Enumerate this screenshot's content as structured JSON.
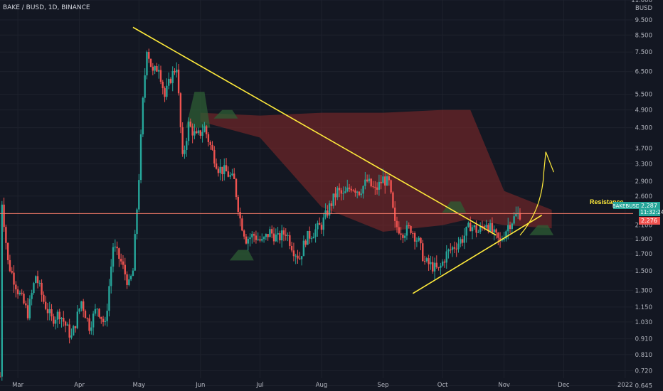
{
  "header": {
    "symbol_line": "BAKE / BUSD, 1D, BINANCE"
  },
  "price_axis": {
    "unit": "BUSD",
    "ticks": [
      "11.000",
      "9.500",
      "8.500",
      "7.500",
      "6.500",
      "5.500",
      "4.900",
      "4.300",
      "3.700",
      "3.300",
      "2.900",
      "2.600",
      "2.100",
      "1.900",
      "1.700",
      "1.500",
      "1.300",
      "1.150",
      "1.030",
      "0.910",
      "0.810",
      "0.720",
      "0.645"
    ]
  },
  "time_axis": {
    "ticks": [
      "Mar",
      "Apr",
      "May",
      "Jun",
      "Jul",
      "Aug",
      "Sep",
      "Oct",
      "Nov",
      "Dec",
      "2022"
    ]
  },
  "badges": {
    "symbol": "BAKEBUSD",
    "price": "2.287",
    "countdown": "11:32:24",
    "price2": "2.276"
  },
  "annotations": {
    "resistance_label": "Resistance"
  },
  "colors": {
    "background": "#131722",
    "bull": "#26a69a",
    "bear": "#ef5350",
    "trendline": "#ffeb3b",
    "resistance_line": "#f77c6a",
    "cloud_bear": "#8b2a2a",
    "cloud_bull": "#2e5e34"
  },
  "chart_data": {
    "type": "candlestick",
    "title": "BAKE / BUSD, 1D, BINANCE",
    "x_range": [
      "2021-02-20",
      "2022-01-05"
    ],
    "y_scale": "log",
    "y_range": [
      0.62,
      11.0
    ],
    "series": [
      {
        "name": "BAKEBUSD",
        "path": [
          [
            "2021-02-20",
            0.69
          ],
          [
            "2021-02-21",
            2.5
          ],
          [
            "2021-02-24",
            1.6
          ],
          [
            "2021-03-01",
            1.3
          ],
          [
            "2021-03-06",
            1.1
          ],
          [
            "2021-03-10",
            1.45
          ],
          [
            "2021-03-14",
            1.2
          ],
          [
            "2021-03-18",
            1.05
          ],
          [
            "2021-03-22",
            1.1
          ],
          [
            "2021-03-28",
            0.92
          ],
          [
            "2021-04-02",
            1.2
          ],
          [
            "2021-04-06",
            1.0
          ],
          [
            "2021-04-10",
            1.15
          ],
          [
            "2021-04-14",
            1.0
          ],
          [
            "2021-04-18",
            1.8
          ],
          [
            "2021-04-22",
            1.6
          ],
          [
            "2021-04-26",
            1.35
          ],
          [
            "2021-04-28",
            1.5
          ],
          [
            "2021-05-01",
            3.0
          ],
          [
            "2021-05-03",
            5.2
          ],
          [
            "2021-05-05",
            7.8
          ],
          [
            "2021-05-08",
            6.4
          ],
          [
            "2021-05-11",
            6.8
          ],
          [
            "2021-05-14",
            5.4
          ],
          [
            "2021-05-17",
            6.2
          ],
          [
            "2021-05-20",
            6.8
          ],
          [
            "2021-05-23",
            3.4
          ],
          [
            "2021-05-26",
            4.4
          ],
          [
            "2021-05-30",
            4.0
          ],
          [
            "2021-06-03",
            4.3
          ],
          [
            "2021-06-07",
            3.6
          ],
          [
            "2021-06-10",
            3.2
          ],
          [
            "2021-06-14",
            3.1
          ],
          [
            "2021-06-18",
            2.9
          ],
          [
            "2021-06-21",
            2.2
          ],
          [
            "2021-06-24",
            1.9
          ],
          [
            "2021-06-28",
            1.95
          ],
          [
            "2021-07-02",
            1.85
          ],
          [
            "2021-07-06",
            2.0
          ],
          [
            "2021-07-10",
            1.9
          ],
          [
            "2021-07-14",
            2.0
          ],
          [
            "2021-07-18",
            1.75
          ],
          [
            "2021-07-21",
            1.65
          ],
          [
            "2021-07-24",
            1.9
          ],
          [
            "2021-07-28",
            2.0
          ],
          [
            "2021-08-01",
            2.1
          ],
          [
            "2021-08-05",
            2.4
          ],
          [
            "2021-08-09",
            2.7
          ],
          [
            "2021-08-12",
            2.6
          ],
          [
            "2021-08-16",
            2.8
          ],
          [
            "2021-08-20",
            2.7
          ],
          [
            "2021-08-24",
            2.9
          ],
          [
            "2021-08-28",
            2.7
          ],
          [
            "2021-09-01",
            2.95
          ],
          [
            "2021-09-04",
            2.85
          ],
          [
            "2021-09-07",
            2.1
          ],
          [
            "2021-09-11",
            2.0
          ],
          [
            "2021-09-15",
            2.05
          ],
          [
            "2021-09-19",
            1.85
          ],
          [
            "2021-09-22",
            1.6
          ],
          [
            "2021-09-26",
            1.55
          ],
          [
            "2021-09-29",
            1.5
          ],
          [
            "2021-10-03",
            1.7
          ],
          [
            "2021-10-07",
            1.8
          ],
          [
            "2021-10-11",
            1.9
          ],
          [
            "2021-10-15",
            2.1
          ],
          [
            "2021-10-19",
            2.0
          ],
          [
            "2021-10-23",
            2.15
          ],
          [
            "2021-10-27",
            1.95
          ],
          [
            "2021-10-30",
            1.85
          ],
          [
            "2021-11-03",
            2.1
          ],
          [
            "2021-11-07",
            2.25
          ],
          [
            "2021-11-09",
            2.287
          ]
        ]
      }
    ],
    "drawings": [
      {
        "name": "descending trendline",
        "from": [
          "2021-04-28",
          9.0
        ],
        "to": [
          "2021-10-28",
          1.95
        ]
      },
      {
        "name": "ascending trendline",
        "from": [
          "2021-09-16",
          1.27
        ],
        "to": [
          "2021-11-20",
          2.26
        ]
      },
      {
        "name": "resistance line",
        "level": 2.287,
        "label": "Resistance"
      },
      {
        "name": "projected path",
        "path": [
          [
            "2021-11-09",
            1.95
          ],
          [
            "2021-11-18",
            2.35
          ],
          [
            "2021-11-21",
            3.1
          ],
          [
            "2021-11-22",
            3.6
          ],
          [
            "2021-11-26",
            3.1
          ]
        ]
      }
    ],
    "ichimoku_cloud": {
      "bear": [
        [
          "2021-06-01",
          4.8,
          4.5
        ],
        [
          "2021-07-01",
          4.7,
          4.0
        ],
        [
          "2021-08-01",
          4.8,
          2.4
        ],
        [
          "2021-09-01",
          4.8,
          2.0
        ],
        [
          "2021-10-01",
          4.9,
          2.1
        ],
        [
          "2021-10-15",
          4.9,
          2.2
        ],
        [
          "2021-11-01",
          2.7,
          2.1
        ],
        [
          "2021-11-25",
          2.35,
          2.05
        ]
      ],
      "bull": [
        [
          "2021-05-29",
          5.6,
          4.3
        ],
        [
          "2021-06-12",
          4.9,
          4.6
        ],
        [
          "2021-10-05",
          2.5,
          2.3
        ],
        [
          "2021-11-18",
          2.1,
          1.95
        ],
        [
          "2021-06-20",
          1.75,
          1.62
        ]
      ]
    }
  }
}
